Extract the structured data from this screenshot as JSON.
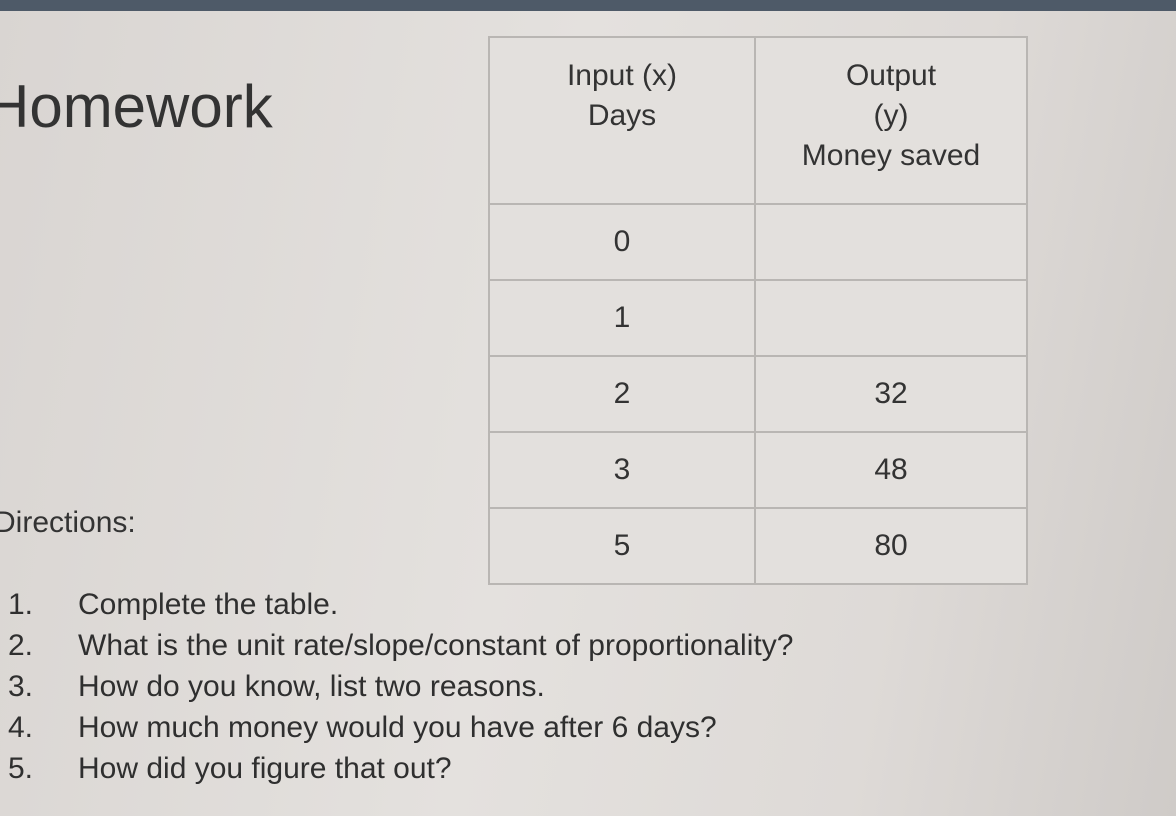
{
  "title": "Homework",
  "directions_label": "Directions:",
  "table": {
    "headers": [
      {
        "line1": "Input (x)",
        "line2": "Days",
        "line3": ""
      },
      {
        "line1": "Output",
        "line2": "(y)",
        "line3": "Money saved"
      }
    ],
    "rows": [
      {
        "x": "0",
        "y": ""
      },
      {
        "x": "1",
        "y": ""
      },
      {
        "x": "2",
        "y": "32"
      },
      {
        "x": "3",
        "y": "48"
      },
      {
        "x": "5",
        "y": "80"
      }
    ]
  },
  "questions": [
    {
      "n": "1.",
      "text": "Complete the table."
    },
    {
      "n": "2.",
      "text": "What is the unit rate/slope/constant of proportionality?"
    },
    {
      "n": "3.",
      "text": "How do you know, list two reasons."
    },
    {
      "n": "4.",
      "text": "How much money would you have after 6 days?"
    },
    {
      "n": "5.",
      "text": "How did you figure that out?"
    }
  ]
}
